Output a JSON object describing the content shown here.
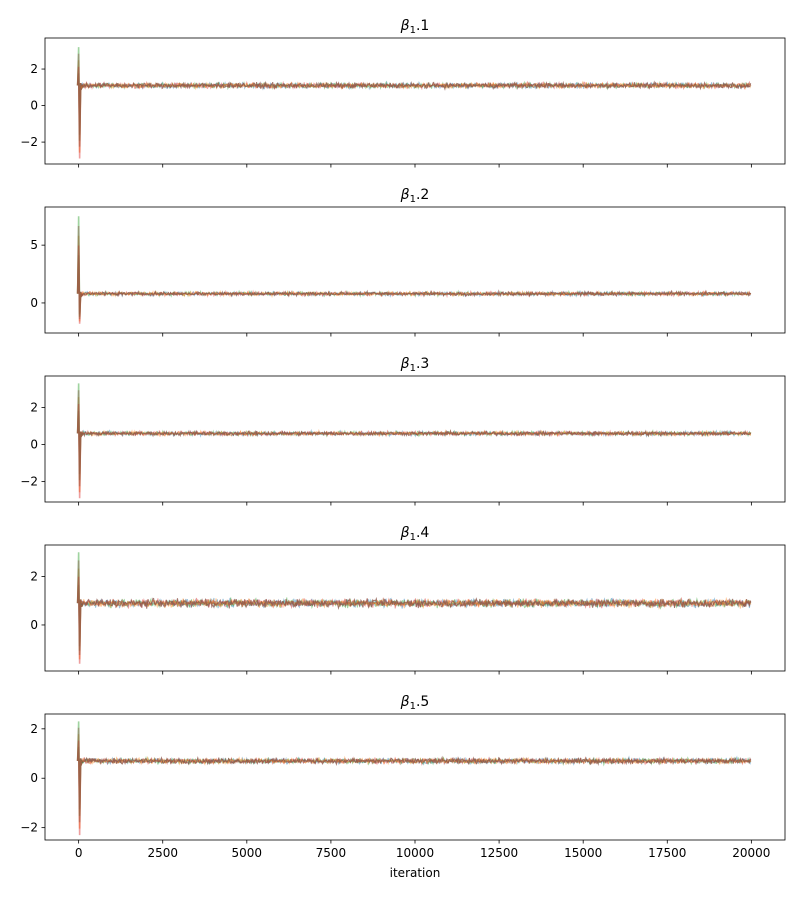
{
  "xlabel": "iteration",
  "x_ticks": [
    0,
    2500,
    5000,
    7500,
    10000,
    12500,
    15000,
    17500,
    20000
  ],
  "x_tick_labels": [
    "0",
    "2500",
    "5000",
    "7500",
    "10000",
    "12500",
    "15000",
    "17500",
    "20000"
  ],
  "chain_colors": [
    "#1f77b4",
    "#ff7f0e",
    "#2ca02c",
    "#d62728",
    "#8c564b"
  ],
  "chart_data": [
    {
      "type": "line",
      "title_var": "β",
      "title_sub": "1",
      "title_suffix": ".1",
      "xlim": [
        -1000,
        21000
      ],
      "ylim": [
        -3.2,
        3.7
      ],
      "y_ticks": [
        -2,
        0,
        2
      ],
      "y_tick_labels": [
        "−2",
        "0",
        "2"
      ],
      "steady_mean": 1.1,
      "steady_spread": 0.13,
      "burn_in_extremes": [
        3.2,
        -2.9
      ]
    },
    {
      "type": "line",
      "title_var": "β",
      "title_sub": "1",
      "title_suffix": ".2",
      "xlim": [
        -1000,
        21000
      ],
      "ylim": [
        -2.6,
        8.3
      ],
      "y_ticks": [
        0,
        5
      ],
      "y_tick_labels": [
        "0",
        "5"
      ],
      "steady_mean": 0.8,
      "steady_spread": 0.15,
      "burn_in_extremes": [
        7.5,
        -1.8
      ]
    },
    {
      "type": "line",
      "title_var": "β",
      "title_sub": "1",
      "title_suffix": ".3",
      "xlim": [
        -1000,
        21000
      ],
      "ylim": [
        -3.1,
        3.7
      ],
      "y_ticks": [
        -2,
        0,
        2
      ],
      "y_tick_labels": [
        "−2",
        "0",
        "2"
      ],
      "steady_mean": 0.6,
      "steady_spread": 0.1,
      "burn_in_extremes": [
        3.3,
        -2.9
      ]
    },
    {
      "type": "line",
      "title_var": "β",
      "title_sub": "1",
      "title_suffix": ".4",
      "xlim": [
        -1000,
        21000
      ],
      "ylim": [
        -1.9,
        3.3
      ],
      "y_ticks": [
        0,
        2
      ],
      "y_tick_labels": [
        "0",
        "2"
      ],
      "steady_mean": 0.9,
      "steady_spread": 0.15,
      "burn_in_extremes": [
        3.0,
        -1.6
      ]
    },
    {
      "type": "line",
      "title_var": "β",
      "title_sub": "1",
      "title_suffix": ".5",
      "xlim": [
        -1000,
        21000
      ],
      "ylim": [
        -2.5,
        2.6
      ],
      "y_ticks": [
        -2,
        0,
        2
      ],
      "y_tick_labels": [
        "−2",
        "0",
        "2"
      ],
      "steady_mean": 0.7,
      "steady_spread": 0.1,
      "burn_in_extremes": [
        2.3,
        -2.3
      ]
    }
  ]
}
